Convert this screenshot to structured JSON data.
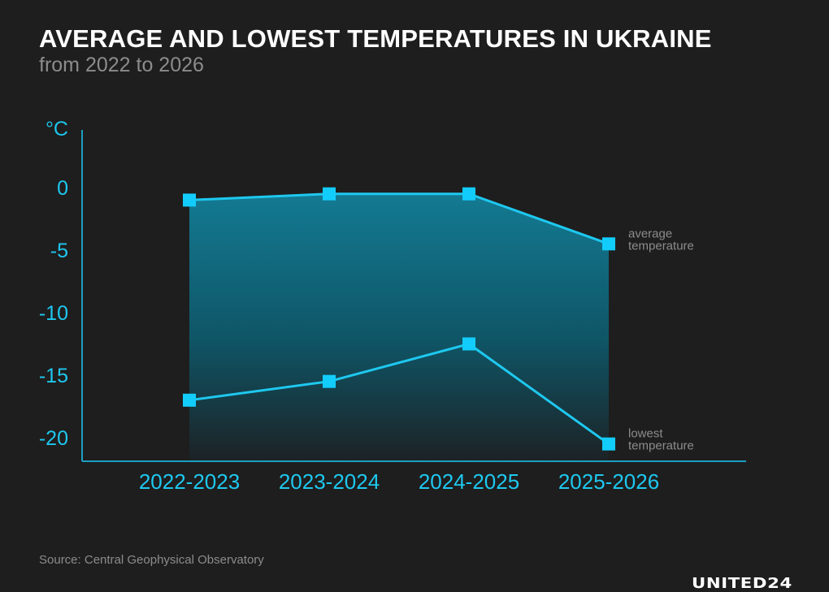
{
  "header": {
    "title": "AVERAGE AND LOWEST TEMPERATURES IN UKRAINE",
    "subtitle": "from 2022 to 2026"
  },
  "source": "Source: Central Geophysical Observatory",
  "logo": "UNITED24",
  "colors": {
    "background": "#1e1e1e",
    "accent": "#1ec8ef",
    "marker": "#12cdfc",
    "fill_top": "#137a92"
  },
  "chart_data": {
    "type": "area",
    "ylabel": "°C",
    "ylim": [
      -22,
      4
    ],
    "yticks": [
      0,
      -5,
      -10,
      -15,
      -20
    ],
    "categories": [
      "2022-2023",
      "2023-2024",
      "2024-2025",
      "2025-2026"
    ],
    "grid": false,
    "series": [
      {
        "name": "average temperature",
        "label_lines": [
          "average",
          "temperature"
        ],
        "values": [
          -1,
          -0.5,
          -0.5,
          -4.5
        ]
      },
      {
        "name": "lowest temperature",
        "label_lines": [
          "lowest",
          "temperature"
        ],
        "values": [
          -17,
          -15.5,
          -12.5,
          -20.5
        ]
      }
    ]
  }
}
